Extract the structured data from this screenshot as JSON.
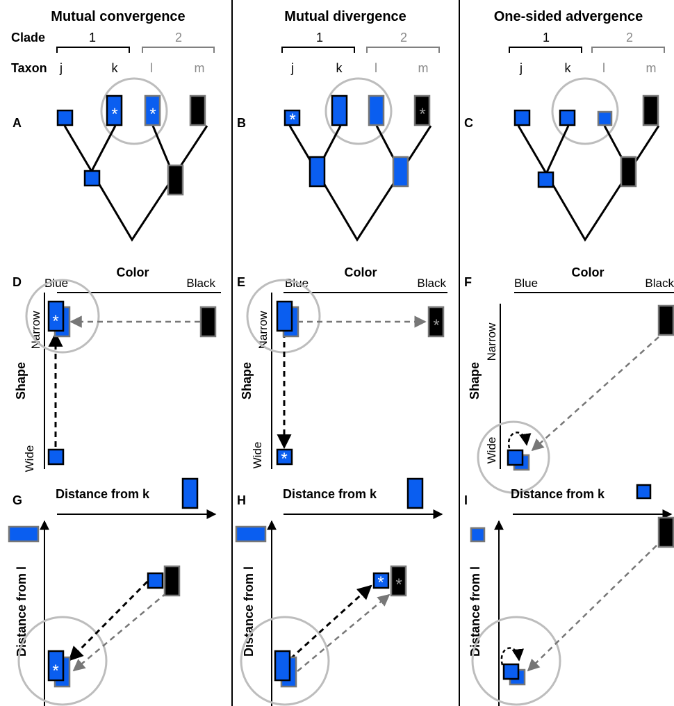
{
  "columns": {
    "c1": {
      "title": "Mutual convergence"
    },
    "c2": {
      "title": "Mutual divergence"
    },
    "c3": {
      "title": "One-sided advergence"
    }
  },
  "tree_labels": {
    "clade": "Clade",
    "taxon": "Taxon",
    "clade1": "1",
    "clade2": "2",
    "j": "j",
    "k": "k",
    "l": "l",
    "m": "m"
  },
  "panels": {
    "A": "A",
    "B": "B",
    "C": "C",
    "D": "D",
    "E": "E",
    "F": "F",
    "G": "G",
    "H": "H",
    "I": "I"
  },
  "morpho": {
    "color": "Color",
    "blue": "Blue",
    "black": "Black",
    "shape": "Shape",
    "narrow": "Narrow",
    "wide": "Wide"
  },
  "distance": {
    "from_k": "Distance from k",
    "from_l": "Distance from l"
  },
  "asterisk": "*",
  "colors": {
    "blue": "#0a5ef0",
    "black": "#000000",
    "gray": "#808080",
    "circle": "#bdbdbd",
    "gray_text": "#8a8a8a"
  }
}
